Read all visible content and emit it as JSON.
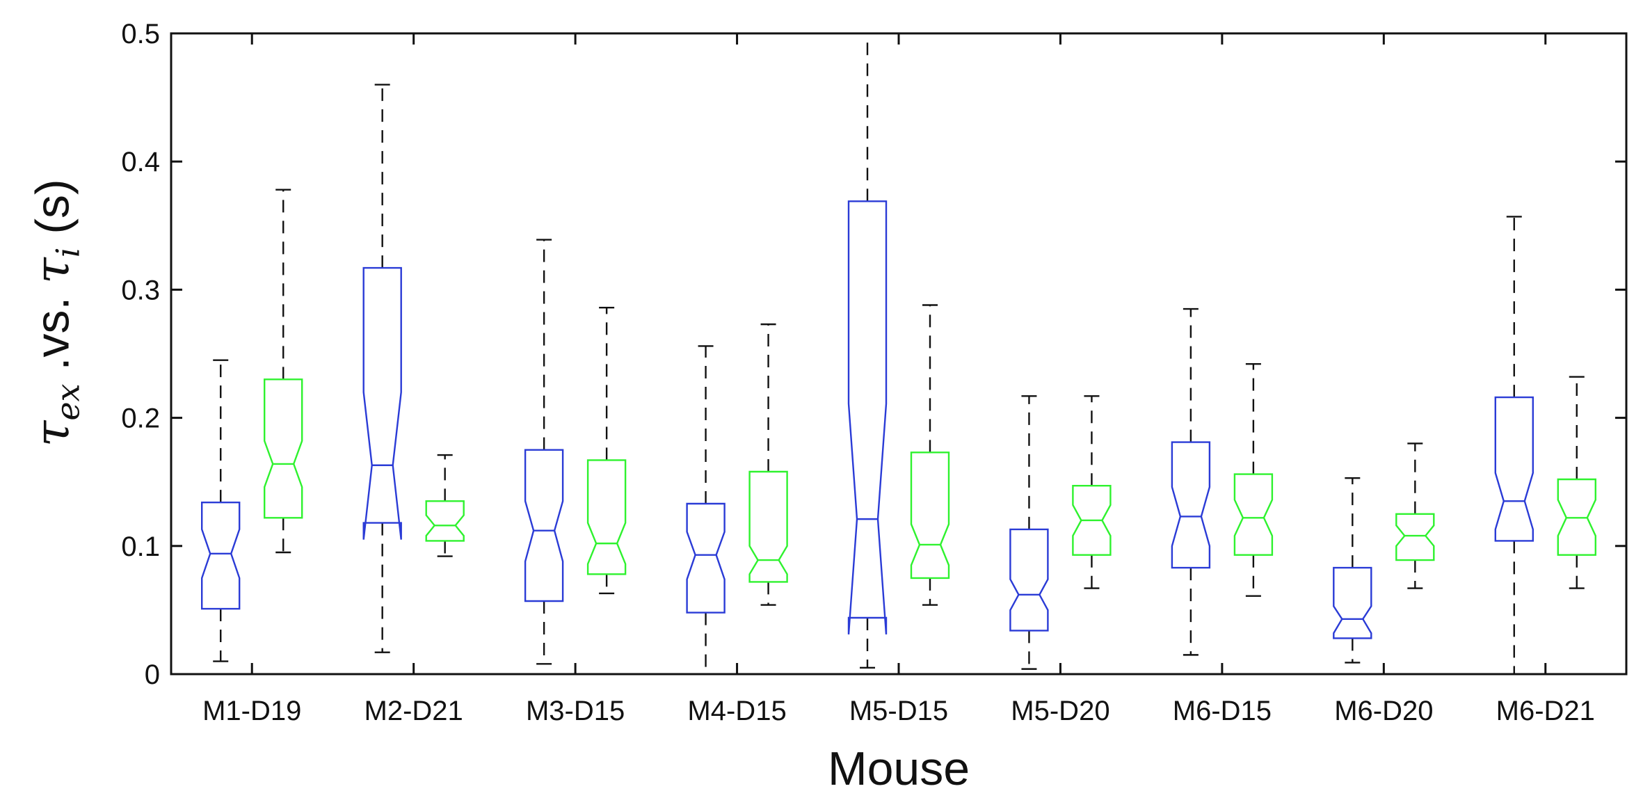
{
  "chart_data": {
    "type": "box",
    "notched": true,
    "title": "",
    "xlabel": "Mouse",
    "ylabel": "τex .vs. τi (s)",
    "ylabel_parts": {
      "tau": "τ",
      "sub1": "ex",
      "mid": " .vs. ",
      "sub2": "i",
      "unit": " (s)"
    },
    "ylim": [
      0,
      0.5
    ],
    "yticks": [
      "0",
      "0.1",
      "0.2",
      "0.3",
      "0.4",
      "0.5"
    ],
    "ytick_values": [
      0,
      0.1,
      0.2,
      0.3,
      0.4,
      0.5
    ],
    "categories": [
      "M1-D19",
      "M2-D21",
      "M3-D15",
      "M4-D15",
      "M5-D15",
      "M5-D20",
      "M6-D15",
      "M6-D20",
      "M6-D21"
    ],
    "series": [
      {
        "name": "τex",
        "color": "#2a3bd6",
        "boxes": [
          {
            "whisker_low": 0.01,
            "q1": 0.051,
            "median": 0.094,
            "q3": 0.134,
            "whisker_high": 0.245,
            "notch_low": 0.075,
            "notch_high": 0.113
          },
          {
            "whisker_low": 0.017,
            "q1": 0.118,
            "median": 0.163,
            "q3": 0.317,
            "whisker_high": 0.46,
            "notch_low": 0.105,
            "notch_high": 0.22
          },
          {
            "whisker_low": 0.008,
            "q1": 0.057,
            "median": 0.112,
            "q3": 0.175,
            "whisker_high": 0.339,
            "notch_low": 0.088,
            "notch_high": 0.135
          },
          {
            "whisker_low": 0.0,
            "q1": 0.048,
            "median": 0.093,
            "q3": 0.133,
            "whisker_high": 0.256,
            "notch_low": 0.074,
            "notch_high": 0.111
          },
          {
            "whisker_low": 0.005,
            "q1": 0.044,
            "median": 0.121,
            "q3": 0.369,
            "whisker_high": 0.5,
            "notch_low": 0.031,
            "notch_high": 0.211
          },
          {
            "whisker_low": 0.004,
            "q1": 0.034,
            "median": 0.062,
            "q3": 0.113,
            "whisker_high": 0.217,
            "notch_low": 0.05,
            "notch_high": 0.074
          },
          {
            "whisker_low": 0.015,
            "q1": 0.083,
            "median": 0.123,
            "q3": 0.181,
            "whisker_high": 0.285,
            "notch_low": 0.1,
            "notch_high": 0.146
          },
          {
            "whisker_low": 0.009,
            "q1": 0.028,
            "median": 0.043,
            "q3": 0.083,
            "whisker_high": 0.153,
            "notch_low": 0.032,
            "notch_high": 0.053
          },
          {
            "whisker_low": 0.0,
            "q1": 0.104,
            "median": 0.135,
            "q3": 0.216,
            "whisker_high": 0.357,
            "notch_low": 0.113,
            "notch_high": 0.157
          }
        ]
      },
      {
        "name": "τi",
        "color": "#2ef22e",
        "boxes": [
          {
            "whisker_low": 0.095,
            "q1": 0.122,
            "median": 0.164,
            "q3": 0.23,
            "whisker_high": 0.378,
            "notch_low": 0.146,
            "notch_high": 0.182
          },
          {
            "whisker_low": 0.092,
            "q1": 0.104,
            "median": 0.116,
            "q3": 0.135,
            "whisker_high": 0.171,
            "notch_low": 0.108,
            "notch_high": 0.124
          },
          {
            "whisker_low": 0.063,
            "q1": 0.078,
            "median": 0.102,
            "q3": 0.167,
            "whisker_high": 0.286,
            "notch_low": 0.086,
            "notch_high": 0.118
          },
          {
            "whisker_low": 0.054,
            "q1": 0.072,
            "median": 0.089,
            "q3": 0.158,
            "whisker_high": 0.273,
            "notch_low": 0.078,
            "notch_high": 0.1
          },
          {
            "whisker_low": 0.054,
            "q1": 0.075,
            "median": 0.101,
            "q3": 0.173,
            "whisker_high": 0.288,
            "notch_low": 0.085,
            "notch_high": 0.117
          },
          {
            "whisker_low": 0.067,
            "q1": 0.093,
            "median": 0.12,
            "q3": 0.147,
            "whisker_high": 0.217,
            "notch_low": 0.108,
            "notch_high": 0.132
          },
          {
            "whisker_low": 0.061,
            "q1": 0.093,
            "median": 0.122,
            "q3": 0.156,
            "whisker_high": 0.242,
            "notch_low": 0.108,
            "notch_high": 0.136
          },
          {
            "whisker_low": 0.067,
            "q1": 0.089,
            "median": 0.108,
            "q3": 0.125,
            "whisker_high": 0.18,
            "notch_low": 0.1,
            "notch_high": 0.116
          },
          {
            "whisker_low": 0.067,
            "q1": 0.093,
            "median": 0.122,
            "q3": 0.152,
            "whisker_high": 0.232,
            "notch_low": 0.108,
            "notch_high": 0.136
          }
        ]
      }
    ],
    "whisker_color": "#111111",
    "axis_color": "#111111"
  }
}
